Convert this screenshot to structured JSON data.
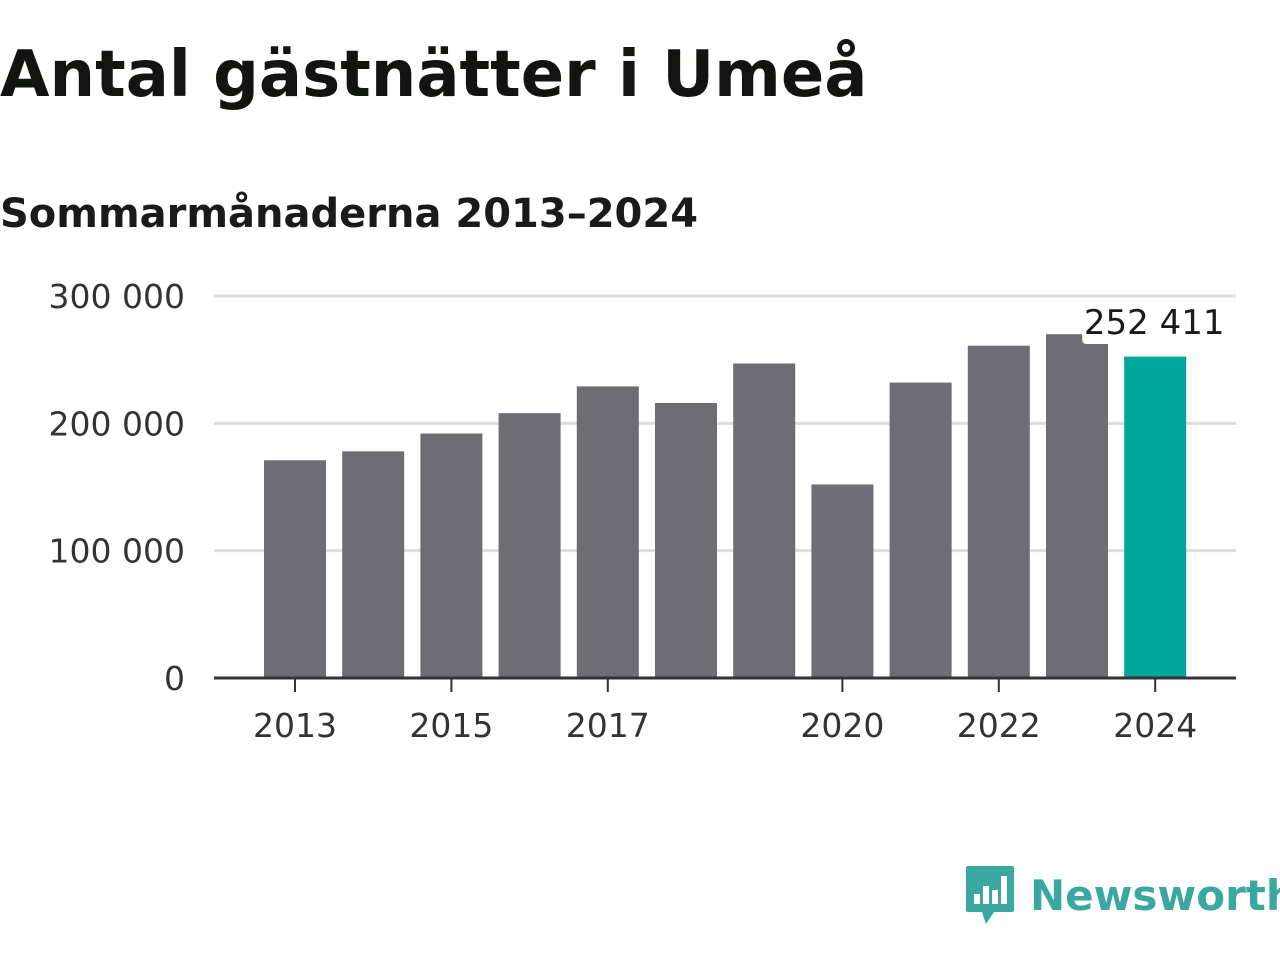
{
  "header": {
    "title": "Antal gästnätter i Umeå",
    "subtitle": "Sommarmånaderna 2013–2024"
  },
  "branding": {
    "logo_text": "Newsworthy",
    "logo_icon": "bar-chart-speech-bubble-icon",
    "logo_color": "#3aa8a1"
  },
  "colors": {
    "bar": "#6e6d74",
    "highlight": "#00a59b",
    "grid": "#dddddd",
    "axis": "#333333"
  },
  "chart_data": {
    "type": "bar",
    "categories": [
      "2013",
      "2014",
      "2015",
      "2016",
      "2017",
      "2018",
      "2019",
      "2020",
      "2021",
      "2022",
      "2023",
      "2024"
    ],
    "values": [
      171000,
      178000,
      192000,
      208000,
      229000,
      216000,
      247000,
      152000,
      232000,
      261000,
      270000,
      252411
    ],
    "highlight_index": 11,
    "highlight_label": "252 411",
    "ylim": [
      0,
      300000
    ],
    "y_ticks": [
      0,
      100000,
      200000,
      300000
    ],
    "y_tick_labels": [
      "0",
      "100 000",
      "200 000",
      "300 000"
    ],
    "x_tick_labels": [
      "2013",
      "2015",
      "2017",
      "2020",
      "2022",
      "2024"
    ],
    "grid": true
  }
}
